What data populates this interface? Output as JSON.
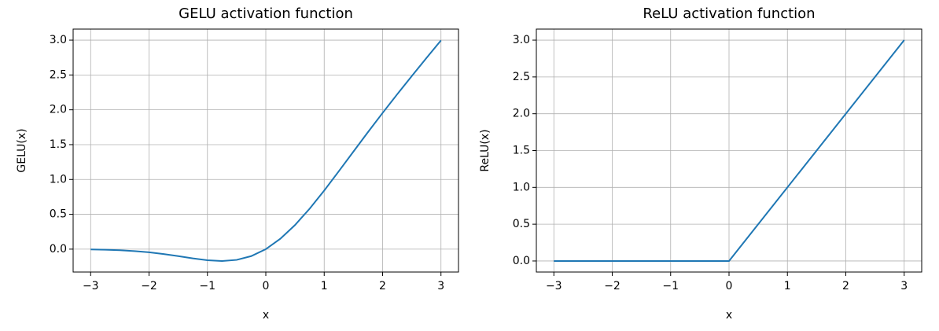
{
  "chart_data": [
    {
      "type": "line",
      "title": "GELU activation function",
      "xlabel": "x",
      "ylabel": "GELU(x)",
      "x": [
        -3,
        -2.75,
        -2.5,
        -2.25,
        -2,
        -1.75,
        -1.5,
        -1.25,
        -1,
        -0.75,
        -0.5,
        -0.25,
        0,
        0.25,
        0.5,
        0.75,
        1,
        1.25,
        1.5,
        1.75,
        2,
        2.25,
        2.5,
        2.75,
        3
      ],
      "series": [
        {
          "color": "#1f77b4",
          "values": [
            -0.004,
            -0.0082,
            -0.0155,
            -0.0275,
            -0.0455,
            -0.0701,
            -0.1002,
            -0.1321,
            -0.1587,
            -0.17,
            -0.1543,
            -0.1003,
            0,
            0.1497,
            0.3457,
            0.58,
            0.8413,
            1.1179,
            1.3998,
            1.6799,
            1.9545,
            2.2225,
            2.4845,
            2.7418,
            2.996
          ]
        }
      ],
      "xlim": [
        -3.3,
        3.3
      ],
      "ylim": [
        -0.3285,
        3.1585
      ],
      "xticks": [
        {
          "value": -3,
          "label": "−3"
        },
        {
          "value": -2,
          "label": "−2"
        },
        {
          "value": -1,
          "label": "−1"
        },
        0,
        1,
        2,
        3
      ],
      "yticks": [
        {
          "value": 0,
          "label": "0.0"
        },
        0.5,
        {
          "value": 1,
          "label": "1.0"
        },
        1.5,
        {
          "value": 2,
          "label": "2.0"
        },
        2.5,
        {
          "value": 3,
          "label": "3.0"
        }
      ],
      "grid": true
    },
    {
      "type": "line",
      "title": "ReLU activation function",
      "xlabel": "x",
      "ylabel": "ReLU(x)",
      "x": [
        -3,
        0,
        3
      ],
      "series": [
        {
          "color": "#1f77b4",
          "values": [
            0,
            0,
            3
          ]
        }
      ],
      "xlim": [
        -3.3,
        3.3
      ],
      "ylim": [
        -0.15,
        3.15
      ],
      "xticks": [
        {
          "value": -3,
          "label": "−3"
        },
        {
          "value": -2,
          "label": "−2"
        },
        {
          "value": -1,
          "label": "−1"
        },
        0,
        1,
        2,
        3
      ],
      "yticks": [
        {
          "value": 0,
          "label": "0.0"
        },
        0.5,
        {
          "value": 1,
          "label": "1.0"
        },
        1.5,
        {
          "value": 2,
          "label": "2.0"
        },
        2.5,
        {
          "value": 3,
          "label": "3.0"
        }
      ],
      "grid": true
    }
  ]
}
